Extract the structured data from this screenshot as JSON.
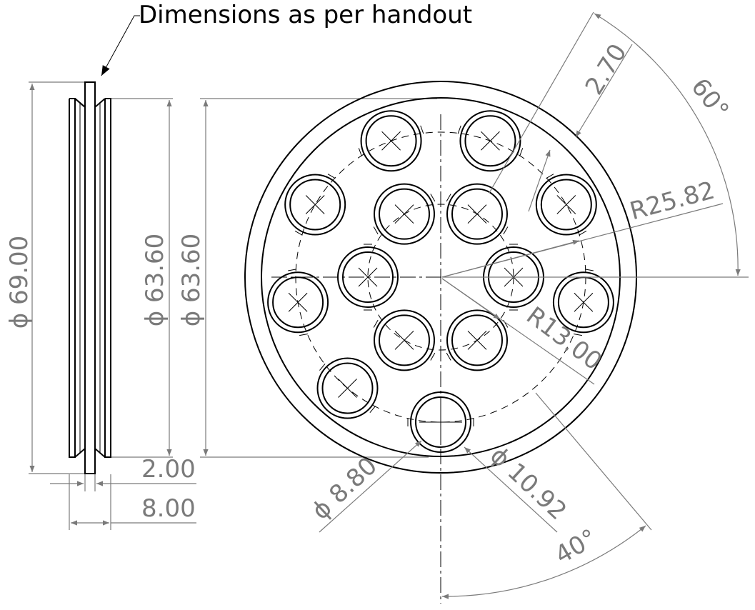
{
  "note": "Dimensions as per handout",
  "dimensions": {
    "outer_dia": "ϕ 69.00",
    "groove_dia_side": "ϕ 63.60",
    "groove_dia_front": "ϕ 63.60",
    "flange_thickness": "2.00",
    "total_width": "8.00",
    "groove_depth": "2.70",
    "angle_top": "60°",
    "outer_radius": "R25.82",
    "inner_radius": "R13.00",
    "hole_dia": "ϕ 8.80",
    "ring_dia": "ϕ 10.92",
    "angle_bottom": "40°"
  },
  "colors": {
    "geometry": "#000000",
    "dimension": "#7a7a7a"
  }
}
